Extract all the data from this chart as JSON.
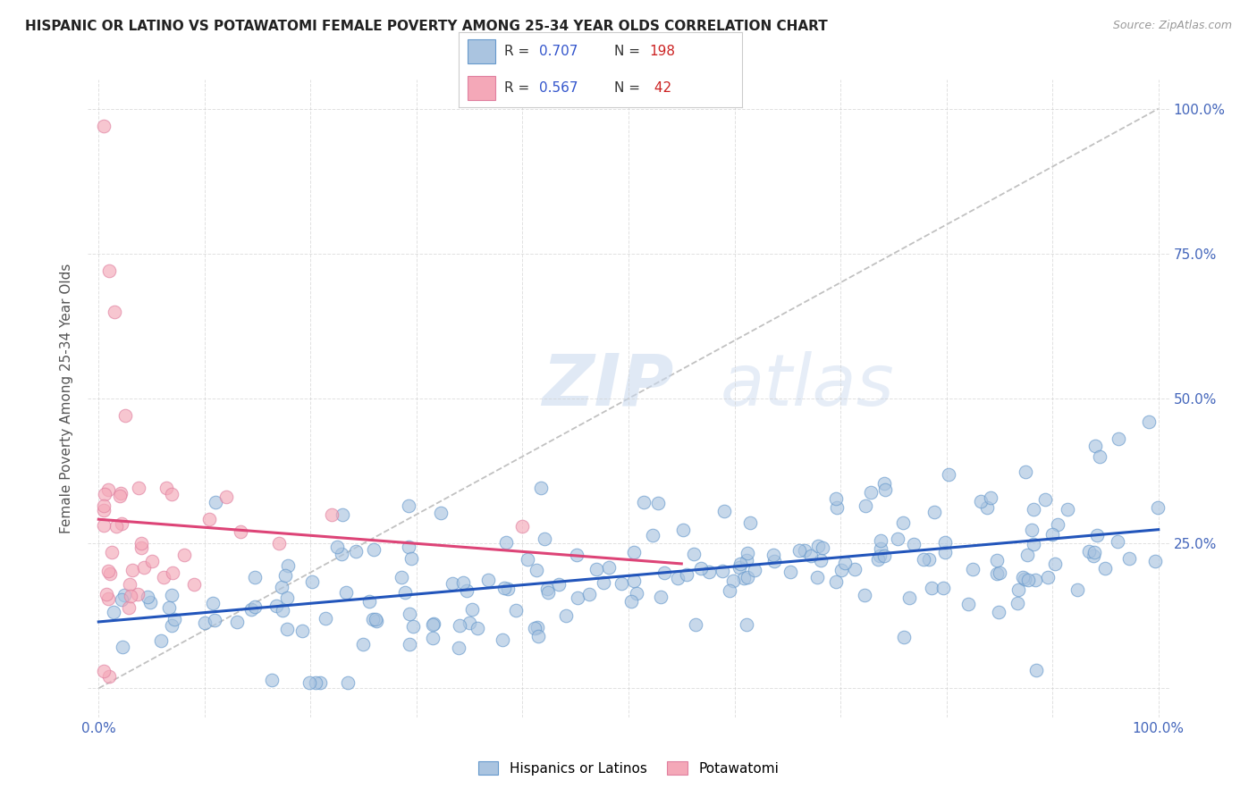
{
  "title": "HISPANIC OR LATINO VS POTAWATOMI FEMALE POVERTY AMONG 25-34 YEAR OLDS CORRELATION CHART",
  "source": "Source: ZipAtlas.com",
  "ylabel": "Female Poverty Among 25-34 Year Olds",
  "blue_R": 0.707,
  "blue_N": 198,
  "pink_R": 0.567,
  "pink_N": 42,
  "blue_color": "#aac4e0",
  "pink_color": "#f4a8b8",
  "blue_edge_color": "#6699cc",
  "pink_edge_color": "#e080a0",
  "blue_line_color": "#2255bb",
  "pink_line_color": "#dd4477",
  "diag_color": "#cccccc",
  "background_color": "#ffffff",
  "grid_color": "#cccccc",
  "right_yticklabels": [
    "100.0%",
    "75.0%",
    "50.0%",
    "25.0%"
  ],
  "right_ytick_vals": [
    1.0,
    0.75,
    0.5,
    0.25
  ],
  "legend_label_blue": "Hispanics or Latinos",
  "legend_label_pink": "Potawatomi",
  "watermark_zip": "ZIP",
  "watermark_atlas": "atlas",
  "title_color": "#222222",
  "source_color": "#999999",
  "axis_label_color": "#555555",
  "tick_color": "#4466bb"
}
